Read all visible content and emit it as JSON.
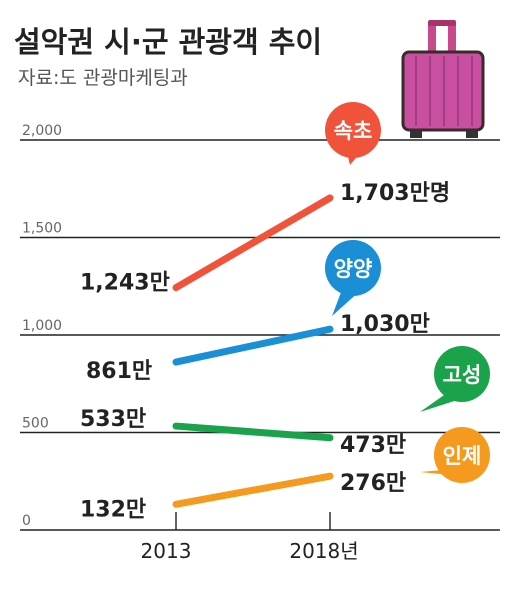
{
  "header": {
    "title": "설악권 시·군 관광객 추이",
    "source": "자료:도 관광마케팅과"
  },
  "colors": {
    "속초": "#f0533a",
    "양양": "#1a8fd6",
    "고성": "#1aa34a",
    "인제": "#f59a1e",
    "grid": "#222222"
  },
  "chart_data": {
    "type": "line",
    "title": "설악권 시·군 관광객 추이",
    "source": "자료:도 관광마케팅과",
    "x": [
      "2013",
      "2018년"
    ],
    "ylim": [
      0,
      2000
    ],
    "yticks": [
      "0",
      "500",
      "1,000",
      "1,500",
      "2,000"
    ],
    "ytick_values": [
      0,
      500,
      1000,
      1500,
      2000
    ],
    "series": [
      {
        "name": "속초",
        "values": [
          1243,
          1703
        ],
        "labels": [
          "1,243만",
          "1,703만명"
        ],
        "color": "#f0533a"
      },
      {
        "name": "양양",
        "values": [
          861,
          1030
        ],
        "labels": [
          "861만",
          "1,030만"
        ],
        "color": "#1a8fd6"
      },
      {
        "name": "고성",
        "values": [
          533,
          473
        ],
        "labels": [
          "533만",
          "473만"
        ],
        "color": "#1aa34a"
      },
      {
        "name": "인제",
        "values": [
          132,
          276
        ],
        "labels": [
          "132만",
          "276만"
        ],
        "color": "#f59a1e"
      }
    ],
    "legend": "bubbles-right",
    "grid": true
  }
}
